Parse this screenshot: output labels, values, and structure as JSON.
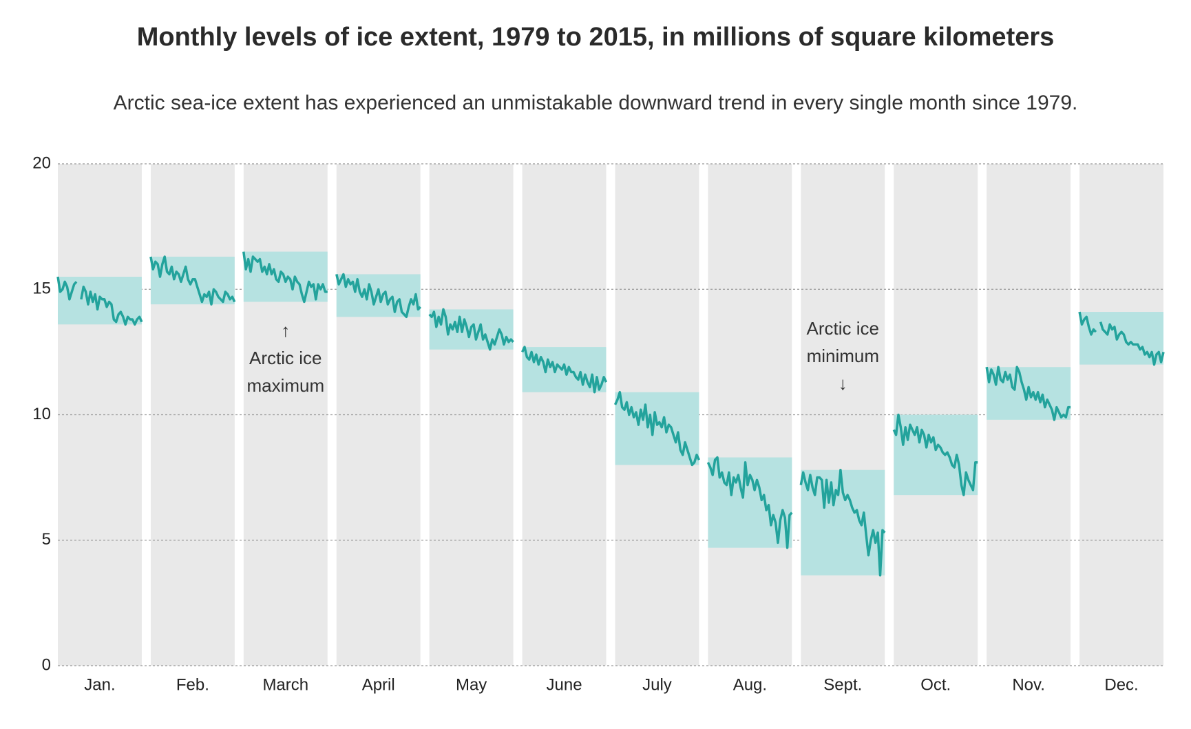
{
  "chart_data": {
    "type": "line",
    "title": "Monthly levels of ice extent, 1979 to 2015, in millions of square kilometers",
    "subtitle": "Arctic sea-ice extent has experienced an unmistakable downward trend in every single month since 1979.",
    "ylim": [
      0,
      20
    ],
    "yticks": [
      0,
      5,
      10,
      15,
      20
    ],
    "grid": true,
    "color": "#23a39c",
    "band_color": "#b6e2e1",
    "panel_color": "#e9e9e9",
    "annotations": [
      {
        "lines": [
          "↑",
          "Arctic ice",
          "maximum"
        ]
      },
      {
        "lines": [
          "Arctic ice",
          "minimum",
          "↓"
        ]
      }
    ],
    "series": [
      {
        "name": "Jan.",
        "values": [
          15.5,
          14.9,
          15.0,
          15.3,
          15.1,
          14.6,
          14.9,
          15.2,
          15.3,
          null,
          14.6,
          15.1,
          14.9,
          14.4,
          14.9,
          14.5,
          14.8,
          14.2,
          14.7,
          14.6,
          14.6,
          14.3,
          14.5,
          14.4,
          13.8,
          13.7,
          14.0,
          14.1,
          13.9,
          13.6,
          13.9,
          13.8,
          13.8,
          13.6,
          13.8,
          13.9,
          13.7
        ]
      },
      {
        "name": "Feb.",
        "values": [
          16.3,
          15.8,
          16.1,
          16.0,
          15.5,
          16.0,
          16.3,
          15.7,
          15.6,
          15.9,
          15.4,
          15.7,
          15.6,
          15.3,
          15.6,
          15.9,
          15.4,
          15.2,
          15.4,
          15.4,
          15.1,
          14.8,
          14.5,
          14.8,
          14.7,
          14.9,
          14.4,
          15.0,
          14.9,
          14.7,
          14.6,
          14.5,
          14.9,
          14.8,
          14.6,
          14.7,
          14.5
        ]
      },
      {
        "name": "March",
        "values": [
          16.5,
          15.8,
          16.2,
          15.7,
          16.3,
          16.2,
          16.1,
          16.2,
          15.7,
          15.9,
          15.6,
          16.0,
          15.6,
          15.8,
          15.4,
          15.3,
          15.7,
          15.6,
          15.3,
          15.5,
          15.4,
          15.0,
          15.5,
          15.3,
          15.2,
          14.8,
          14.5,
          14.9,
          15.3,
          15.1,
          15.2,
          14.6,
          15.2,
          15.0,
          15.2,
          14.9,
          14.9
        ]
      },
      {
        "name": "April",
        "values": [
          15.6,
          15.2,
          15.4,
          15.6,
          15.1,
          15.4,
          15.2,
          15.3,
          14.9,
          15.4,
          14.9,
          14.7,
          15.0,
          14.6,
          15.2,
          14.9,
          14.4,
          14.7,
          15.0,
          14.5,
          14.8,
          14.9,
          14.4,
          14.6,
          14.7,
          14.1,
          14.5,
          14.6,
          14.1,
          14.0,
          13.9,
          14.3,
          14.6,
          14.4,
          14.8,
          14.2,
          14.3
        ]
      },
      {
        "name": "May",
        "values": [
          14.0,
          13.9,
          14.1,
          13.5,
          13.9,
          13.6,
          14.2,
          13.9,
          13.2,
          13.6,
          13.4,
          13.7,
          13.3,
          13.9,
          13.3,
          13.8,
          13.5,
          13.1,
          13.5,
          13.6,
          13.0,
          13.3,
          13.6,
          13.0,
          13.2,
          12.9,
          12.6,
          13.0,
          12.8,
          13.1,
          13.4,
          13.2,
          12.8,
          13.1,
          12.9,
          13.0,
          12.9
        ]
      },
      {
        "name": "June",
        "values": [
          12.5,
          12.7,
          12.3,
          12.2,
          12.5,
          12.1,
          12.4,
          12.0,
          12.3,
          12.1,
          11.7,
          12.2,
          11.9,
          12.1,
          11.7,
          12.0,
          11.9,
          11.8,
          12.0,
          11.6,
          11.9,
          11.7,
          11.7,
          11.5,
          11.4,
          11.7,
          11.2,
          11.6,
          11.3,
          11.1,
          11.6,
          10.9,
          11.5,
          11.0,
          11.2,
          11.5,
          11.3
        ]
      },
      {
        "name": "July",
        "values": [
          10.4,
          10.6,
          10.9,
          10.3,
          10.2,
          10.5,
          10.0,
          10.3,
          9.9,
          10.1,
          9.6,
          10.2,
          9.8,
          10.4,
          9.5,
          10.0,
          9.2,
          10.1,
          9.6,
          9.7,
          9.5,
          9.9,
          9.3,
          9.6,
          9.5,
          9.2,
          8.9,
          9.3,
          8.6,
          8.4,
          8.9,
          8.6,
          8.3,
          8.0,
          8.1,
          8.4,
          8.2
        ]
      },
      {
        "name": "Aug.",
        "values": [
          8.1,
          7.9,
          7.6,
          8.2,
          8.3,
          7.5,
          7.7,
          7.3,
          7.2,
          7.7,
          6.8,
          7.5,
          7.3,
          7.6,
          7.1,
          6.7,
          8.1,
          7.2,
          7.6,
          7.4,
          7.0,
          7.4,
          7.1,
          6.6,
          6.8,
          6.2,
          6.4,
          5.6,
          6.0,
          5.7,
          4.9,
          5.8,
          6.2,
          5.9,
          4.7,
          6.0,
          6.1
        ]
      },
      {
        "name": "Sept.",
        "values": [
          7.2,
          7.7,
          7.3,
          7.0,
          7.6,
          7.1,
          6.8,
          7.5,
          7.5,
          7.4,
          6.3,
          7.4,
          6.5,
          7.3,
          6.4,
          7.0,
          6.8,
          7.8,
          6.9,
          6.6,
          6.8,
          6.6,
          6.3,
          6.1,
          6.2,
          5.8,
          5.6,
          6.1,
          5.2,
          4.4,
          5.0,
          5.4,
          4.9,
          5.3,
          3.6,
          5.4,
          5.3
        ]
      },
      {
        "name": "Oct.",
        "values": [
          9.4,
          9.2,
          10.0,
          9.5,
          8.8,
          9.5,
          9.0,
          9.6,
          9.4,
          9.2,
          9.5,
          8.9,
          9.4,
          9.2,
          8.7,
          9.2,
          8.9,
          9.1,
          8.6,
          8.8,
          8.7,
          8.5,
          8.4,
          8.5,
          8.3,
          8.0,
          7.9,
          8.4,
          8.0,
          7.2,
          6.8,
          7.7,
          7.4,
          7.2,
          7.0,
          8.1,
          8.1
        ]
      },
      {
        "name": "Nov.",
        "values": [
          11.9,
          11.3,
          11.8,
          11.6,
          11.2,
          11.9,
          11.4,
          11.3,
          11.7,
          11.4,
          11.6,
          11.1,
          11.0,
          11.9,
          11.7,
          11.3,
          11.0,
          10.6,
          11.1,
          10.7,
          10.9,
          10.6,
          10.9,
          10.5,
          10.8,
          10.3,
          10.6,
          10.4,
          10.2,
          9.8,
          10.3,
          10.1,
          9.9,
          10.0,
          9.9,
          10.3,
          10.3
        ]
      },
      {
        "name": "Dec.",
        "values": [
          14.1,
          13.6,
          13.8,
          13.9,
          13.5,
          13.2,
          13.4,
          13.3,
          null,
          13.7,
          13.4,
          13.3,
          13.2,
          13.6,
          13.4,
          13.5,
          13.0,
          13.2,
          13.3,
          13.2,
          12.9,
          12.8,
          12.9,
          12.8,
          12.8,
          12.8,
          12.6,
          12.7,
          12.4,
          12.5,
          12.3,
          12.5,
          12.0,
          12.4,
          12.5,
          12.1,
          12.5
        ]
      }
    ]
  }
}
